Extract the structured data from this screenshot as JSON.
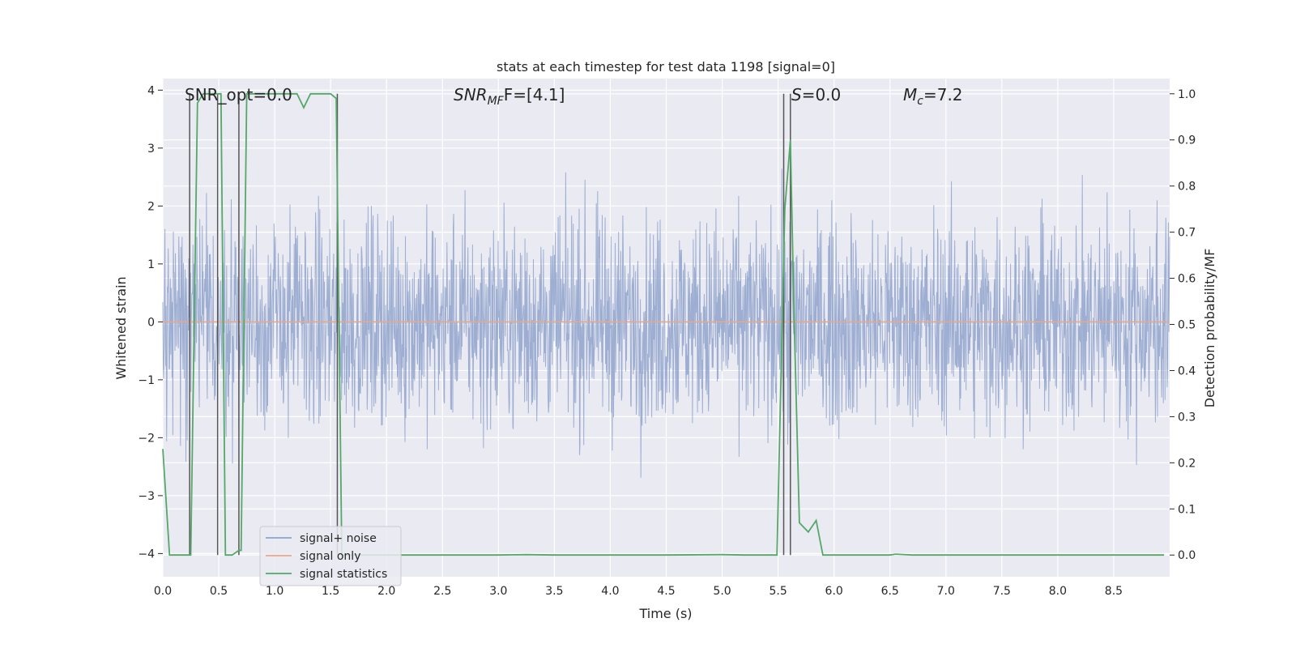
{
  "chart_data": {
    "type": "line",
    "title": "stats at each timestep for test data 1198 [signal=0]",
    "xlabel": "Time (s)",
    "ylabel_left": "Whitened strain",
    "ylabel_right": "Detection probability/MF",
    "xlim": [
      0.0,
      9.0
    ],
    "ylim_left": [
      -4.4,
      4.2
    ],
    "ylim_right": [
      -0.047,
      1.033
    ],
    "x_ticks": [
      0.0,
      0.5,
      1.0,
      1.5,
      2.0,
      2.5,
      3.0,
      3.5,
      4.0,
      4.5,
      5.0,
      5.5,
      6.0,
      6.5,
      7.0,
      7.5,
      8.0,
      8.5
    ],
    "x_tick_labels": [
      "0.0",
      "0.5",
      "1.0",
      "1.5",
      "2.0",
      "2.5",
      "3.0",
      "3.5",
      "4.0",
      "4.5",
      "5.0",
      "5.5",
      "6.0",
      "6.5",
      "7.0",
      "7.5",
      "8.0",
      "8.5"
    ],
    "y_left_ticks": [
      -4,
      -3,
      -2,
      -1,
      0,
      1,
      2,
      3,
      4
    ],
    "y_left_tick_labels": [
      "−4",
      "−3",
      "−2",
      "−1",
      "0",
      "1",
      "2",
      "3",
      "4"
    ],
    "y_right_ticks": [
      0.0,
      0.1,
      0.2,
      0.3,
      0.4,
      0.5,
      0.6,
      0.7,
      0.8,
      0.9,
      1.0
    ],
    "y_right_tick_labels": [
      "0.0",
      "0.1",
      "0.2",
      "0.3",
      "0.4",
      "0.5",
      "0.6",
      "0.7",
      "0.8",
      "0.9",
      "1.0"
    ],
    "grid": true,
    "annotations": {
      "snr_opt": "SNR_opt=0.0",
      "snr_mf_base": "SNR",
      "snr_mf_sub": "MF",
      "snr_mf_value": "F=[4.1]",
      "s_name": "S",
      "s_value": "=0.0",
      "mc_base": "M",
      "mc_sub": "c",
      "mc_value": "=7.2"
    },
    "legend": {
      "placement": "lower-left",
      "entries": [
        {
          "label": "signal+ noise",
          "color": "#8fa3cc"
        },
        {
          "label": "signal only",
          "color": "#e8a888"
        },
        {
          "label": "signal statistics",
          "color": "#55a868"
        }
      ]
    },
    "series": [
      {
        "name": "signal+ noise",
        "axis": "left",
        "color": "#8fa3cc",
        "kind": "noise",
        "amplitude_range": [
          -3.9,
          3.6
        ],
        "x_range": [
          0.0,
          9.0
        ]
      },
      {
        "name": "signal only",
        "axis": "left",
        "color": "#e8a888",
        "x": [
          0.0,
          9.0
        ],
        "y": [
          0.0,
          0.0
        ]
      },
      {
        "name": "signal statistics",
        "axis": "right",
        "color": "#55a868",
        "x": [
          0.0,
          0.06,
          0.25,
          0.31,
          0.36,
          0.41,
          0.48,
          0.52,
          0.56,
          0.62,
          0.68,
          0.7,
          0.75,
          0.8,
          1.2,
          1.26,
          1.32,
          1.4,
          1.5,
          1.55,
          1.6,
          1.66,
          2.0,
          2.5,
          3.0,
          3.25,
          3.5,
          4.0,
          4.5,
          5.0,
          5.2,
          5.49,
          5.56,
          5.61,
          5.64,
          5.69,
          5.77,
          5.84,
          5.9,
          6.0,
          6.5,
          6.55,
          6.7,
          7.0,
          8.0,
          8.95
        ],
        "y": [
          0.23,
          0.0,
          0.0,
          0.98,
          1.0,
          1.0,
          1.0,
          1.0,
          0.0,
          0.0,
          0.01,
          0.01,
          1.0,
          1.0,
          1.0,
          0.97,
          1.0,
          1.0,
          1.0,
          0.99,
          0.0,
          0.0,
          0.0,
          0.0,
          0.0,
          0.001,
          0.0,
          0.0,
          0.0,
          0.001,
          0.0,
          0.0,
          0.75,
          0.9,
          0.55,
          0.07,
          0.05,
          0.075,
          0.0,
          0.0,
          0.0,
          0.002,
          0.0,
          0.0,
          0.0,
          0.0
        ]
      },
      {
        "name": "vertical markers",
        "axis": "right",
        "color": "#555555",
        "kind": "vlines",
        "x": [
          0.24,
          0.49,
          0.68,
          1.56,
          5.55,
          5.61
        ],
        "y_range": [
          0.0,
          1.0
        ]
      }
    ]
  }
}
